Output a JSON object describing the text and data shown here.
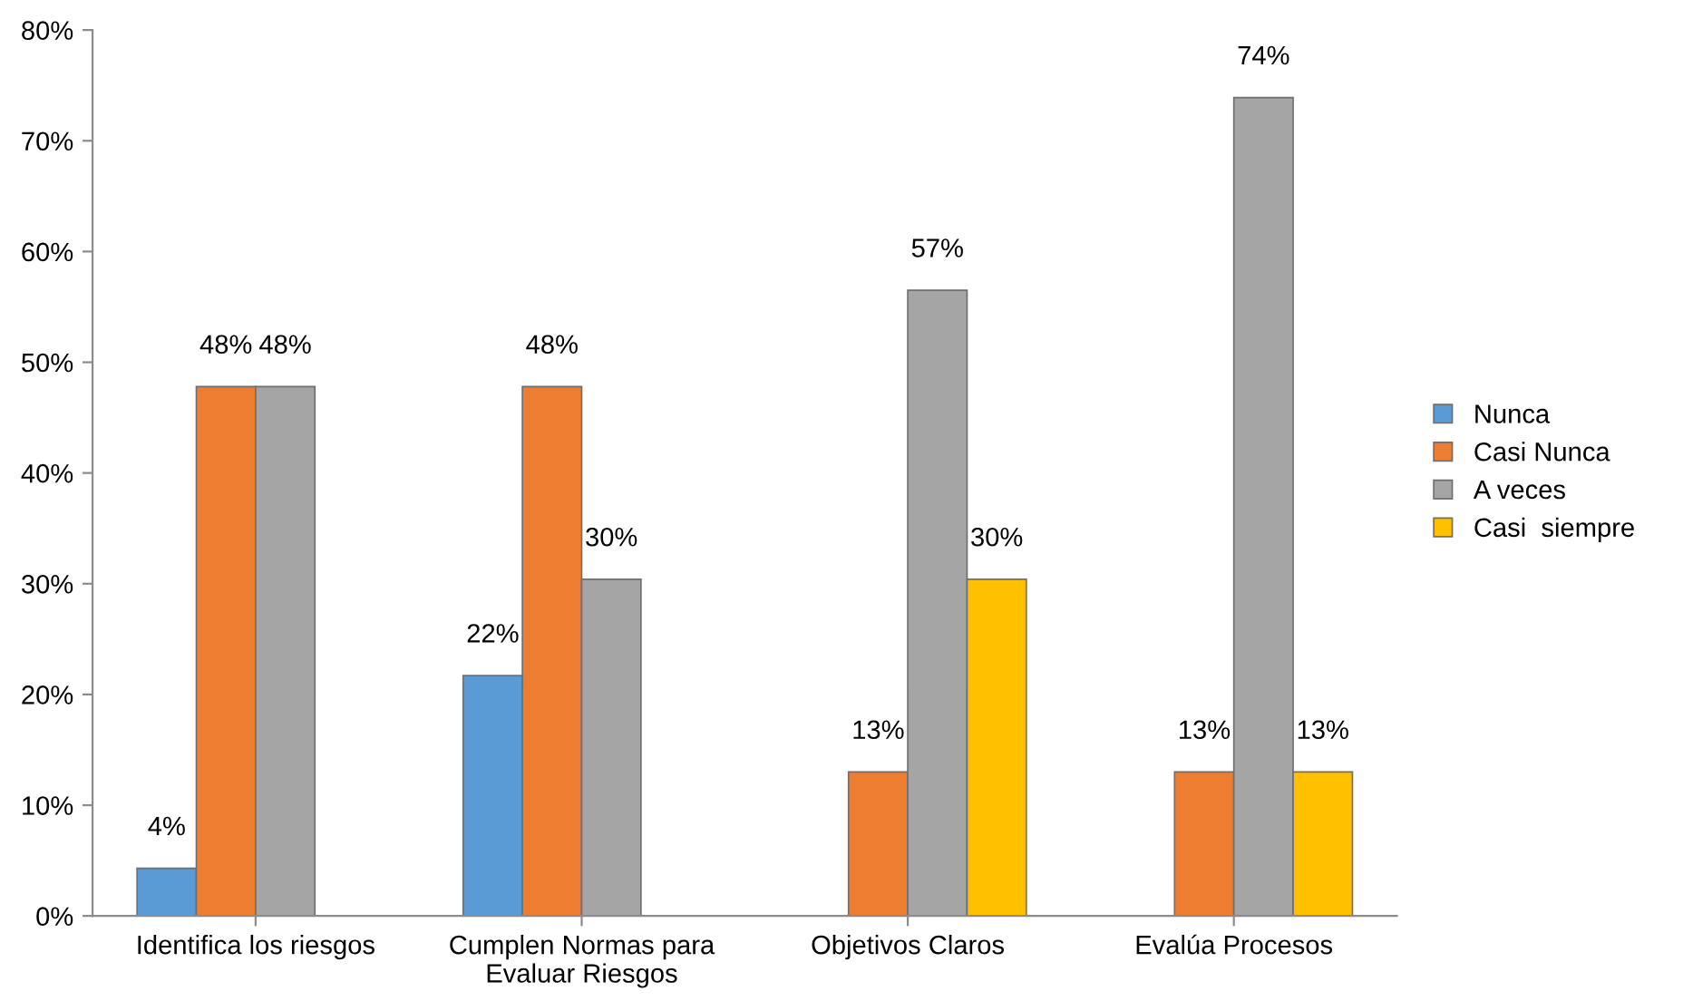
{
  "chart_data": {
    "type": "bar",
    "categories": [
      "Identifica los riesgos",
      "Cumplen Normas para Evaluar Riesgos",
      "Objetivos Claros",
      "Evalúa Procesos"
    ],
    "series": [
      {
        "name": "Nunca",
        "color": "#5b9bd5",
        "values": [
          4.3,
          21.7,
          null,
          null
        ],
        "value_labels": [
          "4%",
          "22%",
          null,
          null
        ]
      },
      {
        "name": "Casi Nunca",
        "color": "#ed7d31",
        "values": [
          47.8,
          47.8,
          13.0,
          13.0
        ],
        "value_labels": [
          "48%",
          "48%",
          "13%",
          "13%"
        ]
      },
      {
        "name": "A veces",
        "color": "#a5a5a5",
        "values": [
          47.8,
          30.4,
          56.5,
          73.9
        ],
        "value_labels": [
          "48%",
          "30%",
          "57%",
          "74%"
        ]
      },
      {
        "name": "Casi  siempre",
        "color": "#ffc000",
        "values": [
          null,
          null,
          30.4,
          13.0
        ],
        "value_labels": [
          null,
          null,
          "30%",
          "13%"
        ]
      }
    ],
    "ylim": [
      0,
      80
    ],
    "yticks": [
      {
        "value": 0,
        "label": "0%"
      },
      {
        "value": 10,
        "label": "10%"
      },
      {
        "value": 20,
        "label": "20%"
      },
      {
        "value": 30,
        "label": "30%"
      },
      {
        "value": 40,
        "label": "40%"
      },
      {
        "value": 50,
        "label": "50%"
      },
      {
        "value": 60,
        "label": "60%"
      },
      {
        "value": 70,
        "label": "70%"
      },
      {
        "value": 80,
        "label": "80%"
      }
    ],
    "grid": false,
    "legend": "right"
  }
}
